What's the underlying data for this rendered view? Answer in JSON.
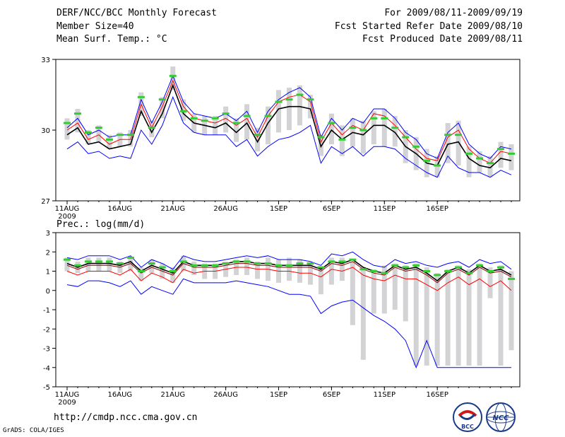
{
  "header": {
    "title": "DERF/NCC/BCC Monthly Forecast",
    "member_size": "Member Size=40",
    "variable": "Mean Surf. Temp.: °C",
    "period": "For 2009/08/11-2009/09/19",
    "started": "Fcst Started Refer Date 2009/08/10",
    "produced": "Fcst Produced Date 2009/08/11"
  },
  "footer": {
    "url": "http://cmdp.ncc.cma.gov.cn",
    "grads": "GrADS: COLA/IGES",
    "logo_bcc": "BCC",
    "logo_ncc": "NCC"
  },
  "colors": {
    "spread": "#d3d3d6",
    "ensemble_mean": "#000000",
    "dark_red": "#8b0000",
    "red": "#ff0000",
    "blue": "#0000ff",
    "green": "#33cc33"
  },
  "chart_data": [
    {
      "type": "line",
      "title": "Mean Surf. Temp.: °C",
      "x_tick_labels": [
        "11AUG",
        "16AUG",
        "21AUG",
        "26AUG",
        "1SEP",
        "6SEP",
        "11SEP",
        "16SEP"
      ],
      "x_year_label": "2009",
      "ylim": [
        27,
        33
      ],
      "y_ticks": [
        "27",
        "30",
        "33"
      ],
      "series": [
        {
          "name": "max",
          "color": "blue",
          "values": [
            30.1,
            30.5,
            29.8,
            30.0,
            29.7,
            29.8,
            29.8,
            31.3,
            30.3,
            31.2,
            32.3,
            31.2,
            30.7,
            30.6,
            30.5,
            30.7,
            30.4,
            30.8,
            29.9,
            30.8,
            31.3,
            31.6,
            31.8,
            31.4,
            29.7,
            30.5,
            30.0,
            30.5,
            30.3,
            30.9,
            30.9,
            30.5,
            29.9,
            29.6,
            29.0,
            28.8,
            29.9,
            30.3,
            29.4,
            29.0,
            28.8,
            29.3,
            29.2
          ]
        },
        {
          "name": "upper",
          "color": "red",
          "values": [
            30.0,
            30.3,
            29.6,
            29.8,
            29.4,
            29.6,
            29.6,
            31.1,
            30.1,
            31.0,
            32.1,
            31.0,
            30.5,
            30.4,
            30.3,
            30.5,
            30.2,
            30.5,
            29.7,
            30.6,
            31.2,
            31.4,
            31.5,
            31.2,
            29.5,
            30.3,
            29.8,
            30.2,
            30.0,
            30.7,
            30.6,
            30.2,
            29.7,
            29.2,
            28.8,
            28.7,
            29.7,
            30.0,
            29.2,
            28.8,
            28.6,
            29.1,
            29.0
          ]
        },
        {
          "name": "ensemble_mean",
          "color": "ensemble_mean",
          "values": [
            29.8,
            30.1,
            29.4,
            29.5,
            29.2,
            29.3,
            29.4,
            30.8,
            29.9,
            30.7,
            31.9,
            30.7,
            30.3,
            30.2,
            30.1,
            30.3,
            29.9,
            30.3,
            29.5,
            30.3,
            30.9,
            31.0,
            31.0,
            30.9,
            29.3,
            30.0,
            29.6,
            29.9,
            29.8,
            30.2,
            30.2,
            29.9,
            29.3,
            29.0,
            28.6,
            28.5,
            29.4,
            29.5,
            28.8,
            28.5,
            28.4,
            28.8,
            28.7
          ]
        },
        {
          "name": "lower",
          "color": "blue",
          "values": [
            29.2,
            29.5,
            29.0,
            29.1,
            28.8,
            28.9,
            28.8,
            30.0,
            29.4,
            30.2,
            31.4,
            30.3,
            29.9,
            29.8,
            29.8,
            29.8,
            29.3,
            29.6,
            28.9,
            29.3,
            29.6,
            29.7,
            29.9,
            30.2,
            28.6,
            29.3,
            29.0,
            29.3,
            28.9,
            29.3,
            29.3,
            29.2,
            28.8,
            28.5,
            28.2,
            28.0,
            28.9,
            28.4,
            28.2,
            28.2,
            28.0,
            28.3,
            28.1
          ]
        }
      ],
      "green_markers": [
        30.3,
        30.7,
        29.9,
        30.1,
        29.6,
        29.8,
        29.8,
        31.4,
        30.1,
        31.3,
        32.3,
        30.8,
        30.5,
        30.4,
        30.5,
        30.7,
        30.3,
        30.6,
        29.8,
        30.6,
        31.2,
        31.3,
        31.5,
        31.3,
        29.7,
        30.3,
        29.6,
        30.1,
        30.0,
        30.5,
        30.5,
        30.1,
        29.7,
        29.3,
        28.7,
        28.5,
        29.8,
        29.8,
        29.0,
        28.8,
        28.6,
        29.2,
        29.0
      ],
      "spread_bars": [
        [
          29.6,
          30.5
        ],
        [
          29.9,
          30.9
        ],
        [
          29.4,
          30.0
        ],
        [
          29.5,
          30.2
        ],
        [
          29.2,
          29.8
        ],
        [
          29.3,
          29.9
        ],
        [
          29.3,
          30.0
        ],
        [
          30.6,
          31.6
        ],
        [
          29.7,
          30.4
        ],
        [
          30.5,
          31.4
        ],
        [
          31.7,
          32.7
        ],
        [
          30.4,
          31.3
        ],
        [
          29.9,
          30.7
        ],
        [
          29.8,
          30.6
        ],
        [
          29.8,
          30.6
        ],
        [
          29.9,
          31.0
        ],
        [
          29.5,
          30.5
        ],
        [
          29.6,
          31.1
        ],
        [
          29.1,
          30.1
        ],
        [
          29.4,
          31.0
        ],
        [
          29.9,
          31.7
        ],
        [
          30.0,
          31.8
        ],
        [
          30.2,
          31.9
        ],
        [
          30.5,
          31.5
        ],
        [
          28.9,
          29.8
        ],
        [
          29.4,
          30.7
        ],
        [
          28.9,
          30.2
        ],
        [
          29.3,
          30.5
        ],
        [
          29.0,
          30.4
        ],
        [
          29.4,
          30.8
        ],
        [
          29.3,
          30.9
        ],
        [
          29.3,
          30.6
        ],
        [
          28.6,
          30.0
        ],
        [
          28.3,
          29.7
        ],
        [
          28.0,
          29.2
        ],
        [
          28.0,
          28.9
        ],
        [
          28.6,
          30.3
        ],
        [
          28.5,
          30.4
        ],
        [
          28.0,
          29.3
        ],
        [
          28.2,
          29.1
        ],
        [
          28.0,
          28.9
        ],
        [
          28.4,
          29.5
        ],
        [
          28.3,
          29.4
        ]
      ]
    },
    {
      "type": "line",
      "title": "Prec.: log(mm/d)",
      "x_tick_labels": [
        "11AUG",
        "16AUG",
        "21AUG",
        "26AUG",
        "1SEP",
        "6SEP",
        "11SEP",
        "16SEP"
      ],
      "x_year_label": "2009",
      "ylim": [
        -5,
        3
      ],
      "y_ticks": [
        "-5",
        "-4",
        "-3",
        "-2",
        "-1",
        "0",
        "1",
        "2",
        "3"
      ],
      "series": [
        {
          "name": "max",
          "color": "blue",
          "values": [
            1.7,
            1.6,
            1.8,
            1.8,
            1.8,
            1.6,
            1.8,
            1.2,
            1.6,
            1.4,
            1.1,
            1.8,
            1.6,
            1.5,
            1.5,
            1.6,
            1.7,
            1.8,
            1.7,
            1.8,
            1.6,
            1.6,
            1.6,
            1.5,
            1.3,
            1.9,
            1.8,
            2.0,
            1.6,
            1.3,
            1.2,
            1.6,
            1.4,
            1.5,
            1.3,
            1.2,
            1.4,
            1.5,
            1.2,
            1.6,
            1.4,
            1.5,
            1.1
          ]
        },
        {
          "name": "upper",
          "color": "ensemble_mean",
          "values": [
            1.4,
            1.2,
            1.4,
            1.4,
            1.4,
            1.3,
            1.5,
            1.0,
            1.3,
            1.1,
            0.9,
            1.5,
            1.3,
            1.3,
            1.3,
            1.4,
            1.5,
            1.5,
            1.4,
            1.4,
            1.3,
            1.3,
            1.3,
            1.3,
            1.1,
            1.5,
            1.4,
            1.6,
            1.2,
            1.0,
            0.9,
            1.3,
            1.1,
            1.2,
            0.9,
            0.5,
            1.0,
            1.2,
            0.9,
            1.3,
            1.0,
            1.1,
            0.8
          ]
        },
        {
          "name": "dark_mean",
          "color": "dark_red",
          "values": [
            1.3,
            1.1,
            1.3,
            1.3,
            1.3,
            1.2,
            1.4,
            0.9,
            1.2,
            1.0,
            0.8,
            1.4,
            1.2,
            1.2,
            1.2,
            1.3,
            1.4,
            1.4,
            1.3,
            1.3,
            1.2,
            1.2,
            1.2,
            1.2,
            1.0,
            1.4,
            1.3,
            1.5,
            1.1,
            0.9,
            0.8,
            1.2,
            1.0,
            1.1,
            0.8,
            0.4,
            0.9,
            1.1,
            0.8,
            1.2,
            0.9,
            1.0,
            0.7
          ]
        },
        {
          "name": "lower_red",
          "color": "red",
          "values": [
            1.0,
            0.8,
            1.0,
            1.0,
            1.0,
            0.8,
            1.1,
            0.5,
            0.9,
            0.7,
            0.4,
            1.1,
            0.9,
            1.0,
            1.0,
            1.1,
            1.2,
            1.2,
            1.1,
            1.1,
            1.0,
            1.0,
            0.9,
            0.9,
            0.7,
            1.1,
            1.0,
            1.2,
            0.8,
            0.6,
            0.5,
            0.8,
            0.6,
            0.6,
            0.3,
            0.0,
            0.4,
            0.7,
            0.3,
            0.6,
            0.2,
            0.5,
            0.0
          ]
        },
        {
          "name": "min",
          "color": "blue",
          "values": [
            0.3,
            0.2,
            0.5,
            0.5,
            0.4,
            0.2,
            0.5,
            -0.2,
            0.2,
            0.0,
            -0.2,
            0.6,
            0.4,
            0.4,
            0.4,
            0.4,
            0.5,
            0.4,
            0.3,
            0.2,
            0.0,
            -0.2,
            -0.2,
            -0.3,
            -1.2,
            -0.8,
            -0.6,
            -0.5,
            -0.9,
            -1.3,
            -1.6,
            -2.0,
            -2.6,
            -4.0,
            -2.6,
            -4.0,
            -4.0,
            -4.0,
            -4.0,
            -4.0,
            -4.0,
            -4.0,
            -4.0
          ]
        }
      ],
      "green_markers": [
        1.6,
        1.3,
        1.5,
        1.5,
        1.5,
        1.4,
        1.7,
        1.0,
        1.4,
        1.2,
        1.0,
        1.5,
        1.3,
        1.3,
        1.3,
        1.4,
        1.5,
        1.5,
        1.4,
        1.4,
        1.3,
        1.3,
        1.4,
        1.4,
        1.2,
        1.5,
        1.5,
        1.6,
        1.1,
        1.0,
        0.9,
        1.3,
        1.2,
        1.3,
        1.0,
        0.8,
        1.0,
        1.2,
        0.9,
        1.3,
        1.0,
        1.2,
        0.6
      ],
      "spread_bars": [
        [
          1.0,
          1.7
        ],
        [
          0.9,
          1.5
        ],
        [
          1.0,
          1.7
        ],
        [
          1.0,
          1.7
        ],
        [
          1.0,
          1.7
        ],
        [
          0.9,
          1.5
        ],
        [
          1.0,
          1.7
        ],
        [
          0.5,
          1.2
        ],
        [
          0.9,
          1.6
        ],
        [
          0.6,
          1.4
        ],
        [
          0.4,
          1.2
        ],
        [
          1.0,
          1.8
        ],
        [
          0.8,
          1.5
        ],
        [
          0.6,
          1.4
        ],
        [
          0.6,
          1.4
        ],
        [
          0.7,
          1.5
        ],
        [
          0.8,
          1.6
        ],
        [
          0.8,
          1.7
        ],
        [
          0.6,
          1.5
        ],
        [
          0.5,
          1.7
        ],
        [
          0.4,
          1.6
        ],
        [
          0.5,
          1.7
        ],
        [
          0.4,
          1.6
        ],
        [
          0.3,
          1.4
        ],
        [
          -0.2,
          1.2
        ],
        [
          0.3,
          1.7
        ],
        [
          0.5,
          1.7
        ],
        [
          -1.8,
          1.5
        ],
        [
          -3.6,
          1.2
        ],
        [
          -1.2,
          1.1
        ],
        [
          -1.2,
          1.3
        ],
        [
          -1.0,
          1.4
        ],
        [
          -1.6,
          1.3
        ],
        [
          -3.9,
          1.4
        ],
        [
          -3.9,
          1.2
        ],
        [
          -3.9,
          0.9
        ],
        [
          -3.9,
          1.1
        ],
        [
          -3.9,
          1.3
        ],
        [
          -3.9,
          1.1
        ],
        [
          -3.9,
          1.4
        ],
        [
          -0.4,
          1.2
        ],
        [
          -3.9,
          1.3
        ],
        [
          -3.1,
          1.0
        ]
      ]
    }
  ]
}
